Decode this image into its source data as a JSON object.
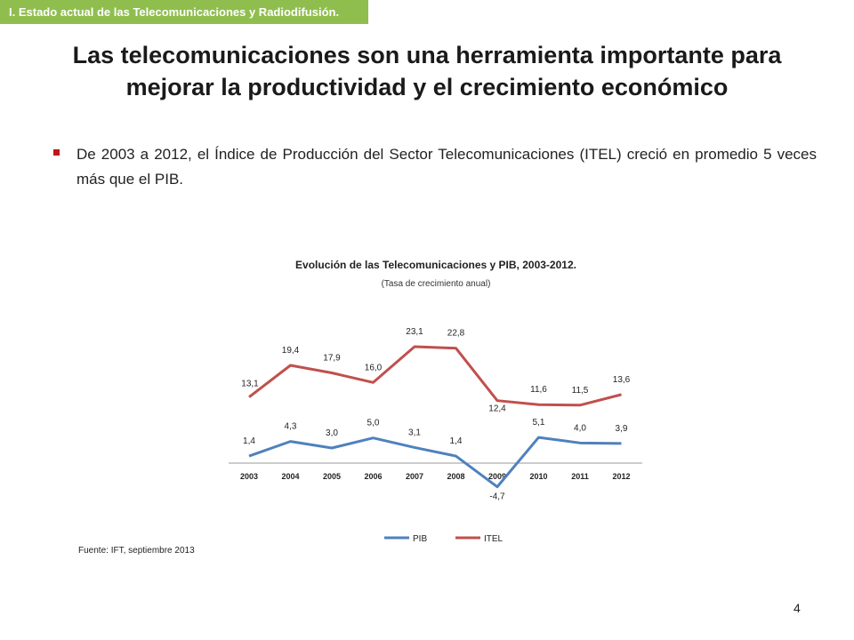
{
  "section_tag": "I. Estado actual de las Telecomunicaciones y Radiodifusión.",
  "title": "Las telecomunicaciones son una herramienta importante para mejorar la productividad y el crecimiento económico",
  "bullet": "De 2003 a 2012, el Índice de Producción del Sector Telecomunicaciones (ITEL) creció en promedio 5 veces más que el PIB.",
  "source": "Fuente: IFT, septiembre 2013",
  "page_number": "4",
  "colors": {
    "tag_bg": "#8fbe4e",
    "bullet": "#c0161a",
    "pib": "#4f81bd",
    "itel": "#c0504d"
  },
  "chart_data": {
    "type": "line",
    "title": "Evolución de las Telecomunicaciones y PIB, 2003-2012.",
    "subtitle": "(Tasa de crecimiento anual)",
    "categories": [
      "2003",
      "2004",
      "2005",
      "2006",
      "2007",
      "2008",
      "2009",
      "2010",
      "2011",
      "2012"
    ],
    "series": [
      {
        "name": "PIB",
        "color": "#4f81bd",
        "values": [
          1.4,
          4.3,
          3.0,
          5.0,
          3.1,
          1.4,
          -4.7,
          5.1,
          4.0,
          3.9
        ],
        "labels": [
          "1,4",
          "4,3",
          "3,0",
          "5,0",
          "3,1",
          "1,4",
          "-4,7",
          "5,1",
          "4,0",
          "3,9"
        ]
      },
      {
        "name": "ITEL",
        "color": "#c0504d",
        "values": [
          13.1,
          19.4,
          17.9,
          16.0,
          23.1,
          22.8,
          12.4,
          11.6,
          11.5,
          13.6
        ],
        "labels": [
          "13,1",
          "19,4",
          "17,9",
          "16,0",
          "23,1",
          "22,8",
          "12,4",
          "11,6",
          "11,5",
          "13,6"
        ]
      }
    ],
    "legend_position": "bottom",
    "grid": false
  }
}
